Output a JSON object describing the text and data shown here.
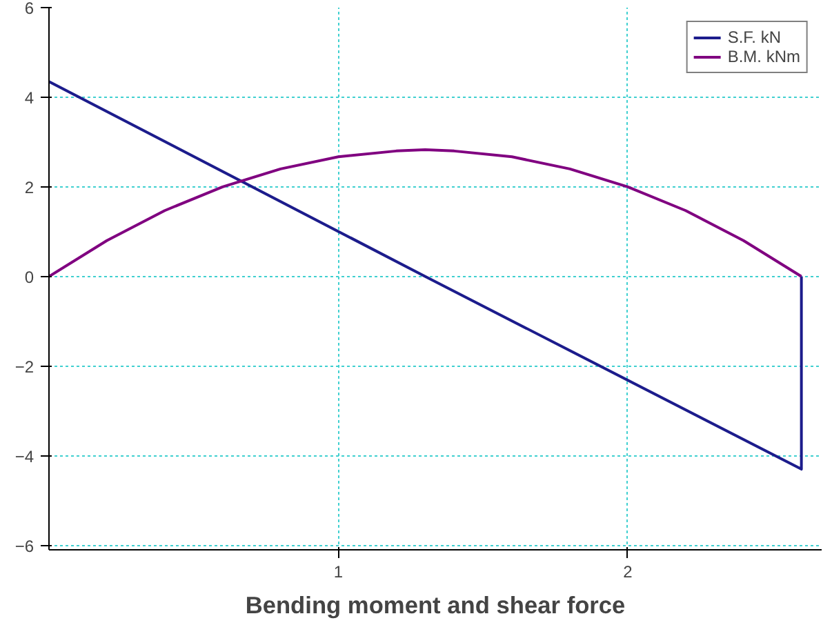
{
  "chart_data": {
    "type": "line",
    "title": "Bending moment and shear force",
    "series": [
      {
        "name": "S.F. kN",
        "color": "#1c1c8c",
        "x": [
          0,
          1.3,
          2.6,
          2.6
        ],
        "values": [
          4.35,
          0,
          -4.3,
          0
        ]
      },
      {
        "name": "B.M. kNm",
        "color": "#800080",
        "x": [
          0,
          0.2,
          0.4,
          0.6,
          0.8,
          1.0,
          1.2,
          1.3,
          1.4,
          1.6,
          1.8,
          2.0,
          2.2,
          2.4,
          2.6
        ],
        "values": [
          0,
          0.8,
          1.47,
          2.0,
          2.4,
          2.67,
          2.8,
          2.83,
          2.8,
          2.67,
          2.4,
          2.0,
          1.47,
          0.8,
          0
        ]
      }
    ],
    "xlim": [
      0,
      2.67
    ],
    "xticks": [
      1,
      2
    ],
    "ylim": [
      -6.1,
      6
    ],
    "yticks": [
      -6,
      -4,
      -2,
      0,
      2,
      4,
      6
    ],
    "grid": true,
    "legend": "top right",
    "line_style": "solid",
    "marker": "none"
  }
}
